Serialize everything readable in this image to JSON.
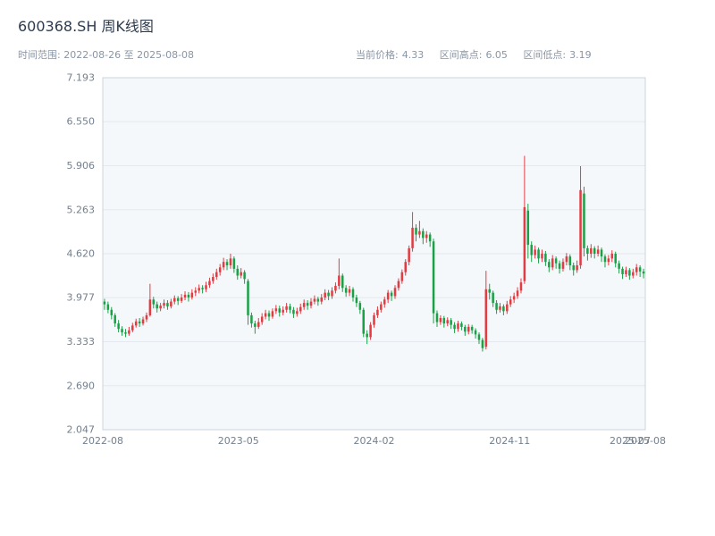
{
  "header": {
    "title": "600368.SH 周K线图",
    "date_range_label": "时间范围: 2022-08-26 至 2025-08-08",
    "stats": [
      {
        "label": "当前价格:",
        "value": "4.33"
      },
      {
        "label": "区间高点:",
        "value": "6.05"
      },
      {
        "label": "区间低点:",
        "value": "3.19"
      }
    ]
  },
  "chart_data": {
    "type": "candlestick",
    "symbol": "600368.SH",
    "interval": "weekly",
    "title": "600368.SH 周K线图",
    "start_date": "2022-08-26",
    "end_date": "2025-08-08",
    "current_price": 4.33,
    "range_high": 6.05,
    "range_low": 3.19,
    "ylim": [
      2.047,
      7.193
    ],
    "y_ticks": [
      "7.193",
      "6.550",
      "5.906",
      "5.263",
      "4.620",
      "3.977",
      "3.333",
      "2.690",
      "2.047"
    ],
    "x_ticks": [
      {
        "label": "2022-08",
        "pos": 0.0
      },
      {
        "label": "2023-05",
        "pos": 0.25
      },
      {
        "label": "2024-02",
        "pos": 0.5
      },
      {
        "label": "2024-11",
        "pos": 0.75
      },
      {
        "label": "2025-07",
        "pos": 0.972
      },
      {
        "label": "2025-08",
        "pos": 1.0
      }
    ],
    "grid": true,
    "colors": {
      "up": "#e23b41",
      "down": "#1aa148",
      "grid": "#e4e9ef",
      "plot_bg": "#f5f8fa",
      "axis": "#ccd4dc",
      "tick_text": "#73808e"
    },
    "candles": [
      [
        3.92,
        3.96,
        3.8,
        3.88
      ],
      [
        3.88,
        3.92,
        3.75,
        3.8
      ],
      [
        3.8,
        3.84,
        3.66,
        3.72
      ],
      [
        3.72,
        3.75,
        3.55,
        3.6
      ],
      [
        3.6,
        3.65,
        3.47,
        3.52
      ],
      [
        3.52,
        3.56,
        3.42,
        3.47
      ],
      [
        3.47,
        3.52,
        3.4,
        3.45
      ],
      [
        3.45,
        3.55,
        3.42,
        3.5
      ],
      [
        3.5,
        3.61,
        3.47,
        3.57
      ],
      [
        3.57,
        3.67,
        3.54,
        3.63
      ],
      [
        3.63,
        3.68,
        3.55,
        3.6
      ],
      [
        3.6,
        3.7,
        3.57,
        3.66
      ],
      [
        3.66,
        3.76,
        3.62,
        3.72
      ],
      [
        3.72,
        4.18,
        3.7,
        3.95
      ],
      [
        3.95,
        3.99,
        3.82,
        3.88
      ],
      [
        3.88,
        3.92,
        3.76,
        3.82
      ],
      [
        3.82,
        3.9,
        3.78,
        3.86
      ],
      [
        3.86,
        3.95,
        3.82,
        3.9
      ],
      [
        3.9,
        3.94,
        3.8,
        3.85
      ],
      [
        3.85,
        3.96,
        3.82,
        3.92
      ],
      [
        3.92,
        4.01,
        3.88,
        3.97
      ],
      [
        3.97,
        4.0,
        3.87,
        3.93
      ],
      [
        3.93,
        4.03,
        3.9,
        3.98
      ],
      [
        3.98,
        4.07,
        3.94,
        4.02
      ],
      [
        4.02,
        4.06,
        3.92,
        3.98
      ],
      [
        3.98,
        4.1,
        3.95,
        4.05
      ],
      [
        4.05,
        4.13,
        4.0,
        4.08
      ],
      [
        4.08,
        4.17,
        4.04,
        4.12
      ],
      [
        4.12,
        4.16,
        4.04,
        4.1
      ],
      [
        4.1,
        4.21,
        4.06,
        4.16
      ],
      [
        4.16,
        4.27,
        4.12,
        4.22
      ],
      [
        4.22,
        4.33,
        4.18,
        4.28
      ],
      [
        4.28,
        4.4,
        4.24,
        4.35
      ],
      [
        4.35,
        4.47,
        4.3,
        4.42
      ],
      [
        4.42,
        4.56,
        4.38,
        4.5
      ],
      [
        4.5,
        4.54,
        4.38,
        4.45
      ],
      [
        4.45,
        4.62,
        4.4,
        4.55
      ],
      [
        4.55,
        4.58,
        4.34,
        4.4
      ],
      [
        4.4,
        4.45,
        4.24,
        4.3
      ],
      [
        4.3,
        4.41,
        4.26,
        4.35
      ],
      [
        4.35,
        4.38,
        4.18,
        4.25
      ],
      [
        4.22,
        4.25,
        3.58,
        3.72
      ],
      [
        3.72,
        3.76,
        3.54,
        3.6
      ],
      [
        3.6,
        3.64,
        3.45,
        3.55
      ],
      [
        3.55,
        3.68,
        3.52,
        3.62
      ],
      [
        3.62,
        3.75,
        3.58,
        3.7
      ],
      [
        3.7,
        3.8,
        3.66,
        3.75
      ],
      [
        3.75,
        3.79,
        3.64,
        3.7
      ],
      [
        3.7,
        3.82,
        3.67,
        3.78
      ],
      [
        3.78,
        3.87,
        3.74,
        3.82
      ],
      [
        3.82,
        3.86,
        3.7,
        3.76
      ],
      [
        3.76,
        3.85,
        3.72,
        3.8
      ],
      [
        3.8,
        3.9,
        3.76,
        3.85
      ],
      [
        3.85,
        3.89,
        3.75,
        3.8
      ],
      [
        3.8,
        3.84,
        3.68,
        3.74
      ],
      [
        3.74,
        3.83,
        3.7,
        3.78
      ],
      [
        3.78,
        3.89,
        3.74,
        3.84
      ],
      [
        3.84,
        3.95,
        3.8,
        3.9
      ],
      [
        3.9,
        3.94,
        3.8,
        3.86
      ],
      [
        3.86,
        3.97,
        3.82,
        3.92
      ],
      [
        3.92,
        4.01,
        3.88,
        3.96
      ],
      [
        3.96,
        3.99,
        3.86,
        3.92
      ],
      [
        3.92,
        4.03,
        3.88,
        3.98
      ],
      [
        3.98,
        4.1,
        3.94,
        4.05
      ],
      [
        4.05,
        4.09,
        3.94,
        4.0
      ],
      [
        4.0,
        4.13,
        3.96,
        4.08
      ],
      [
        4.08,
        4.2,
        4.04,
        4.15
      ],
      [
        4.15,
        4.55,
        4.1,
        4.3
      ],
      [
        4.3,
        4.33,
        4.06,
        4.12
      ],
      [
        4.12,
        4.16,
        3.99,
        4.05
      ],
      [
        4.05,
        4.15,
        4.0,
        4.1
      ],
      [
        4.1,
        4.13,
        3.92,
        3.98
      ],
      [
        3.98,
        4.02,
        3.84,
        3.9
      ],
      [
        3.9,
        3.93,
        3.74,
        3.8
      ],
      [
        3.8,
        3.83,
        3.4,
        3.45
      ],
      [
        3.45,
        3.5,
        3.3,
        3.4
      ],
      [
        3.4,
        3.62,
        3.36,
        3.58
      ],
      [
        3.58,
        3.76,
        3.54,
        3.72
      ],
      [
        3.72,
        3.85,
        3.68,
        3.8
      ],
      [
        3.8,
        3.92,
        3.76,
        3.88
      ],
      [
        3.88,
        3.99,
        3.83,
        3.95
      ],
      [
        3.95,
        4.09,
        3.9,
        4.05
      ],
      [
        4.05,
        4.08,
        3.93,
        4.0
      ],
      [
        4.0,
        4.16,
        3.96,
        4.12
      ],
      [
        4.12,
        4.26,
        4.08,
        4.22
      ],
      [
        4.22,
        4.39,
        4.18,
        4.35
      ],
      [
        4.35,
        4.54,
        4.3,
        4.5
      ],
      [
        4.5,
        4.74,
        4.45,
        4.7
      ],
      [
        4.7,
        5.23,
        4.65,
        5.0
      ],
      [
        5.0,
        5.05,
        4.8,
        4.9
      ],
      [
        4.9,
        5.1,
        4.85,
        4.95
      ],
      [
        4.95,
        4.99,
        4.76,
        4.85
      ],
      [
        4.85,
        4.95,
        4.78,
        4.9
      ],
      [
        4.9,
        4.93,
        4.72,
        4.8
      ],
      [
        4.8,
        4.84,
        3.6,
        3.75
      ],
      [
        3.75,
        3.79,
        3.55,
        3.62
      ],
      [
        3.62,
        3.72,
        3.58,
        3.68
      ],
      [
        3.68,
        3.71,
        3.54,
        3.6
      ],
      [
        3.6,
        3.69,
        3.56,
        3.65
      ],
      [
        3.65,
        3.68,
        3.52,
        3.58
      ],
      [
        3.58,
        3.62,
        3.46,
        3.52
      ],
      [
        3.52,
        3.64,
        3.48,
        3.6
      ],
      [
        3.6,
        3.63,
        3.5,
        3.55
      ],
      [
        3.55,
        3.58,
        3.42,
        3.48
      ],
      [
        3.48,
        3.59,
        3.44,
        3.55
      ],
      [
        3.55,
        3.58,
        3.45,
        3.5
      ],
      [
        3.5,
        3.53,
        3.38,
        3.44
      ],
      [
        3.44,
        3.47,
        3.3,
        3.36
      ],
      [
        3.36,
        3.39,
        3.19,
        3.24
      ],
      [
        3.26,
        4.37,
        3.22,
        4.1
      ],
      [
        4.1,
        4.18,
        3.95,
        4.05
      ],
      [
        4.05,
        4.08,
        3.84,
        3.9
      ],
      [
        3.9,
        3.94,
        3.74,
        3.8
      ],
      [
        3.8,
        3.9,
        3.76,
        3.85
      ],
      [
        3.85,
        3.88,
        3.72,
        3.78
      ],
      [
        3.78,
        3.93,
        3.74,
        3.88
      ],
      [
        3.88,
        4.0,
        3.84,
        3.95
      ],
      [
        3.95,
        4.05,
        3.9,
        4.0
      ],
      [
        4.0,
        4.13,
        3.96,
        4.08
      ],
      [
        4.08,
        4.26,
        4.04,
        4.2
      ],
      [
        4.22,
        6.05,
        4.18,
        5.3
      ],
      [
        5.25,
        5.35,
        4.55,
        4.75
      ],
      [
        4.75,
        4.8,
        4.5,
        4.6
      ],
      [
        4.6,
        4.74,
        4.55,
        4.68
      ],
      [
        4.68,
        4.71,
        4.48,
        4.55
      ],
      [
        4.55,
        4.68,
        4.5,
        4.62
      ],
      [
        4.62,
        4.66,
        4.44,
        4.5
      ],
      [
        4.5,
        4.54,
        4.35,
        4.42
      ],
      [
        4.42,
        4.6,
        4.38,
        4.55
      ],
      [
        4.55,
        4.58,
        4.4,
        4.48
      ],
      [
        4.48,
        4.52,
        4.33,
        4.4
      ],
      [
        4.4,
        4.55,
        4.36,
        4.5
      ],
      [
        4.5,
        4.63,
        4.45,
        4.58
      ],
      [
        4.58,
        4.61,
        4.38,
        4.45
      ],
      [
        4.45,
        4.49,
        4.3,
        4.38
      ],
      [
        4.38,
        4.52,
        4.34,
        4.45
      ],
      [
        4.45,
        5.9,
        4.4,
        5.55
      ],
      [
        5.5,
        5.6,
        4.58,
        4.7
      ],
      [
        4.7,
        4.74,
        4.52,
        4.62
      ],
      [
        4.62,
        4.76,
        4.56,
        4.7
      ],
      [
        4.7,
        4.73,
        4.55,
        4.62
      ],
      [
        4.62,
        4.74,
        4.58,
        4.68
      ],
      [
        4.68,
        4.71,
        4.5,
        4.58
      ],
      [
        4.58,
        4.61,
        4.42,
        4.5
      ],
      [
        4.5,
        4.6,
        4.45,
        4.55
      ],
      [
        4.55,
        4.67,
        4.5,
        4.62
      ],
      [
        4.62,
        4.65,
        4.42,
        4.48
      ],
      [
        4.48,
        4.52,
        4.33,
        4.4
      ],
      [
        4.4,
        4.43,
        4.25,
        4.32
      ],
      [
        4.32,
        4.43,
        4.28,
        4.38
      ],
      [
        4.38,
        4.41,
        4.24,
        4.3
      ],
      [
        4.3,
        4.4,
        4.26,
        4.35
      ],
      [
        4.35,
        4.47,
        4.3,
        4.42
      ],
      [
        4.42,
        4.45,
        4.28,
        4.36
      ],
      [
        4.36,
        4.4,
        4.26,
        4.33
      ]
    ]
  }
}
